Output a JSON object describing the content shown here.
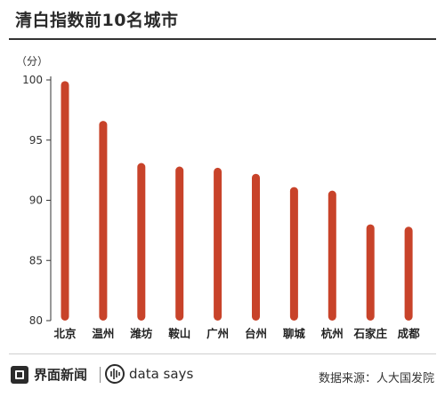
{
  "header": {
    "title": "清白指数前10名城市"
  },
  "footer": {
    "brand": "界面新闻",
    "secondary_brand": "data says",
    "source": "数据来源：人大国发院"
  },
  "colors": {
    "bar": "#c8432a",
    "axis": "#333333"
  },
  "chart_data": {
    "type": "bar",
    "title": "清白指数前10名城市",
    "ylabel": "（分）",
    "xlabel": "",
    "ylim": [
      80,
      100
    ],
    "yticks": [
      80,
      85,
      90,
      95,
      100
    ],
    "categories": [
      "北京",
      "温州",
      "潍坊",
      "鞍山",
      "广州",
      "台州",
      "聊城",
      "杭州",
      "石家庄",
      "成都"
    ],
    "values": [
      99.9,
      96.6,
      93.1,
      92.8,
      92.7,
      92.2,
      91.1,
      90.8,
      88.0,
      87.8
    ],
    "grid": false,
    "legend": "none"
  }
}
